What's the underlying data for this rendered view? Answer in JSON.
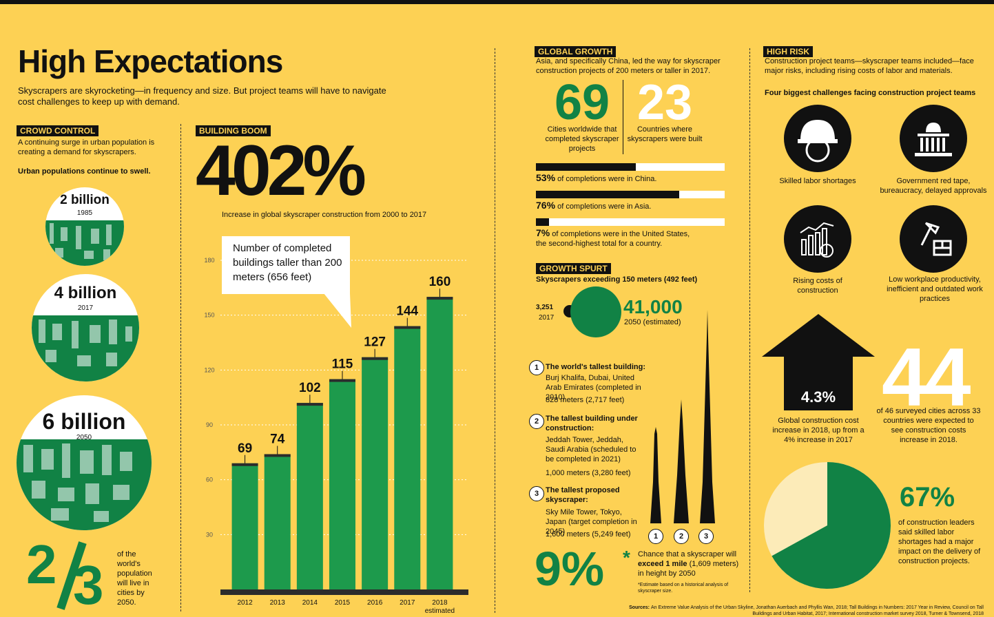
{
  "title": "High Expectations",
  "subtitle": "Skyscrapers are skyrocketing—in frequency and size. But project teams will have to navigate cost challenges to keep up with demand.",
  "crowd": {
    "label": "CROWD CONTROL",
    "text": "A continuing surge in urban population is creating a demand for skyscrapers.",
    "sub": "Urban populations continue to swell.",
    "items": [
      {
        "value": "2 billion",
        "year": "1985"
      },
      {
        "value": "4 billion",
        "year": "2017"
      },
      {
        "value": "6 billion",
        "year": "2050"
      }
    ],
    "fraction": "2/3",
    "fraction_num": "2",
    "fraction_den": "3",
    "fraction_text": "of the world's population will live in cities by 2050."
  },
  "boom": {
    "label": "BUILDING BOOM",
    "big": "402%",
    "caption": "Increase in global skyscraper construction from 2000 to 2017",
    "callout": "Number of completed buildings taller than 200 meters (656 feet)"
  },
  "chart_data": {
    "type": "bar",
    "categories": [
      "2012",
      "2013",
      "2014",
      "2015",
      "2016",
      "2017",
      "2018"
    ],
    "category_notes": [
      "",
      "",
      "",
      "",
      "",
      "",
      "estimated"
    ],
    "values": [
      69,
      74,
      102,
      115,
      127,
      144,
      160
    ],
    "value_labels": [
      "69",
      "74",
      "102",
      "115",
      "127",
      "144",
      "160"
    ],
    "yticks": [
      "30",
      "60",
      "90",
      "120",
      "150",
      "180"
    ],
    "ylim": [
      0,
      180
    ],
    "title": "Number of completed buildings taller than 200 meters (656 feet)",
    "colors": {
      "bar": "#1d9a4c",
      "bar_top": "#2c2c2c"
    }
  },
  "growth": {
    "label": "GLOBAL GROWTH",
    "text": "Asia, and specifically China, led the way for skyscraper construction projects of 200 meters or taller in 2017.",
    "cities_num": "69",
    "cities_text": "Cities worldwide that completed skyscraper projects",
    "countries_num": "23",
    "countries_text": "Countries where skyscrapers were built",
    "bars": [
      {
        "pct": "53%",
        "text": " of completions were in China.",
        "fraction": 0.53
      },
      {
        "pct": "76%",
        "text": " of completions were in Asia.",
        "fraction": 0.76
      },
      {
        "pct": "7%",
        "text": " of completions were in the United States, the second-highest total for a country.",
        "fraction": 0.07
      }
    ]
  },
  "spurt": {
    "label": "GROWTH SPURT",
    "sub": "Skyscrapers exceeding 150 meters (492 feet)",
    "small_num": "3,251",
    "small_year": "2017",
    "big_num": "41,000",
    "big_year": "2050 (estimated)",
    "items": [
      {
        "n": "1",
        "title": "The world's tallest building:",
        "lines": [
          "Burj Khalifa, Dubai, United Arab Emirates (completed in 2010)",
          "828 meters (2,717 feet)"
        ]
      },
      {
        "n": "2",
        "title": "The tallest building under construction:",
        "lines": [
          "Jeddah Tower, Jeddah, Saudi Arabia (scheduled to be completed in 2021)",
          "1,000 meters (3,280 feet)"
        ]
      },
      {
        "n": "3",
        "title": "The tallest proposed skyscraper:",
        "lines": [
          "Sky Mile Tower, Tokyo, Japan (target completion in 2045)",
          "1,600 meters (5,249 feet)"
        ]
      }
    ],
    "towers": [
      "1",
      "2",
      "3"
    ],
    "chance_num": "9%",
    "chance_star": "*",
    "chance_pre": "Chance that a skyscraper will ",
    "chance_bold": "exceed 1 mile",
    "chance_post": " (1,609 meters) in height by 2050",
    "footnote": "*Estimate based on a historical analysis of skyscraper size."
  },
  "risk": {
    "label": "HIGH RISK",
    "text": "Construction project teams—skyscraper teams included—face major risks, including rising costs of labor and materials.",
    "sub": "Four biggest challenges facing construction project teams",
    "challenges": [
      {
        "icon": "hard-hat-worker-icon",
        "text": "Skilled labor shortages"
      },
      {
        "icon": "government-building-icon",
        "text": "Government red tape, bureaucracy, delayed approvals"
      },
      {
        "icon": "rising-costs-chart-icon",
        "text": "Rising costs of construction"
      },
      {
        "icon": "hammer-bricks-icon",
        "text": "Low workplace productivity, inefficient and outdated work practices"
      }
    ],
    "arrow_pct": "4.3%",
    "arrow_text": "Global construction cost increase in 2018, up from a 4% increase in 2017",
    "big44": "44",
    "big44_text": "of 46 surveyed cities across 33 countries were expected to see construction costs increase in 2018.",
    "pie_pct": "67%",
    "pie_value": 67,
    "pie_text": "of construction leaders said skilled labor shortages had a major impact on the delivery of construction projects."
  },
  "sources": {
    "label": "Sources: ",
    "text": "An Extreme Value Analysis of the Urban Skyline, Jonathan Auerbach and Phyllis Wan, 2018; Tall Buildings in Numbers: 2017 Year in Review, Council on Tall Buildings and Urban Habitat, 2017; International construction market survey 2018, Turner & Townsend, 2018"
  }
}
